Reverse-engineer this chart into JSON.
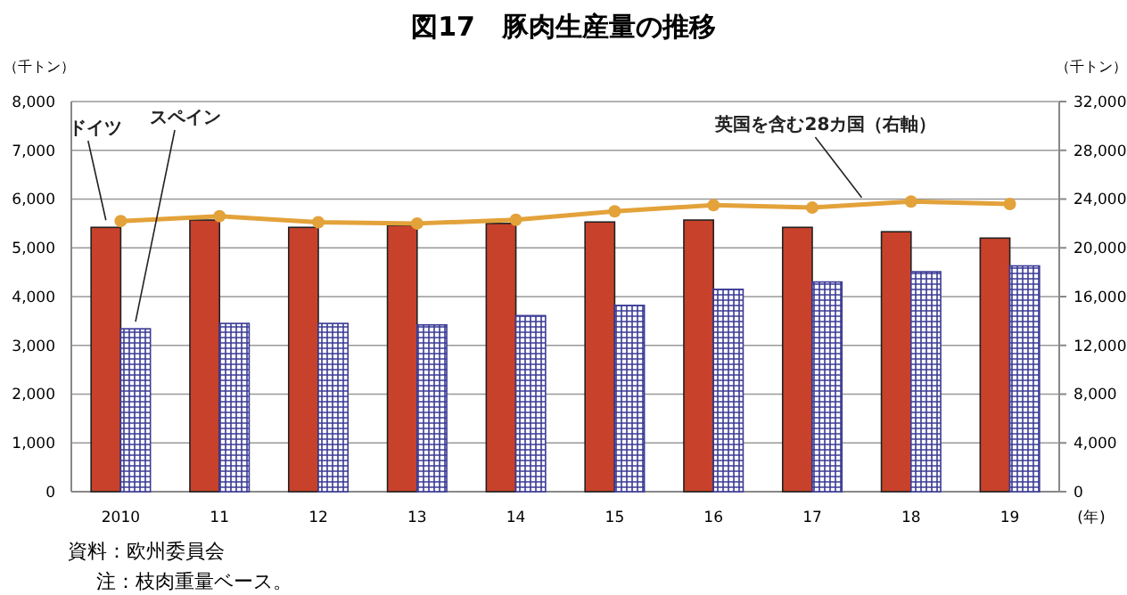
{
  "chart_data": {
    "type": "bar",
    "title": "図17　豚肉生産量の推移",
    "ylabel": "（千トン）",
    "y2label": "（千トン）",
    "xlabel": "(年)",
    "categories": [
      "2010",
      "11",
      "12",
      "13",
      "14",
      "15",
      "16",
      "17",
      "18",
      "19"
    ],
    "series": [
      {
        "name": "ドイツ",
        "color": "#c8412a",
        "values": [
          5420,
          5570,
          5420,
          5460,
          5500,
          5530,
          5570,
          5420,
          5330,
          5200
        ]
      },
      {
        "name": "スペイン",
        "color": "#3a3a96",
        "values": [
          3340,
          3450,
          3450,
          3420,
          3610,
          3820,
          4150,
          4300,
          4510,
          4630
        ]
      },
      {
        "name": "英国を含む28カ国（右軸）",
        "type": "line",
        "axis": "y2",
        "color": "#e3a23a",
        "marker": "circle",
        "values": [
          22200,
          22600,
          22100,
          22000,
          22300,
          23000,
          23500,
          23300,
          23800,
          23600
        ]
      }
    ],
    "ylim": [
      0,
      8000
    ],
    "yticks": [
      0,
      {
        "value": 1000,
        "label": "1,000"
      },
      {
        "value": 2000,
        "label": "2,000"
      },
      {
        "value": 3000,
        "label": "3,000"
      },
      {
        "value": 4000,
        "label": "4,000"
      },
      {
        "value": 5000,
        "label": "5,000"
      },
      {
        "value": 6000,
        "label": "6,000"
      },
      {
        "value": 7000,
        "label": "7,000"
      },
      {
        "value": 8000,
        "label": "8,000"
      }
    ],
    "y2lim": [
      0,
      32000
    ],
    "y2ticks": [
      0,
      {
        "value": 4000,
        "label": "4,000"
      },
      {
        "value": 8000,
        "label": "8,000"
      },
      {
        "value": 12000,
        "label": "12,000"
      },
      {
        "value": 16000,
        "label": "16,000"
      },
      {
        "value": 20000,
        "label": "20,000"
      },
      {
        "value": 24000,
        "label": "24,000"
      },
      {
        "value": 28000,
        "label": "28,000"
      },
      {
        "value": 32000,
        "label": "32,000"
      }
    ],
    "grid": "y",
    "annotations": [
      "資料：欧州委員会",
      "注：枝肉重量ベース。"
    ]
  }
}
